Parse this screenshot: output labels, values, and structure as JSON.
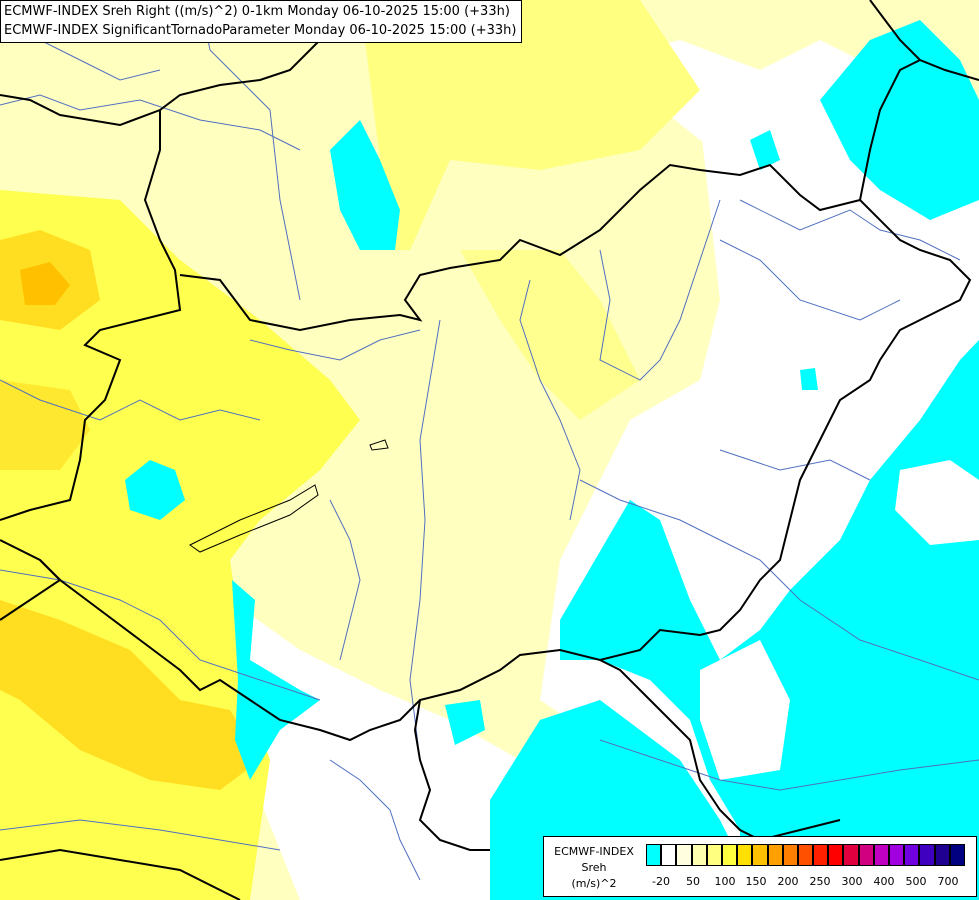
{
  "titles": {
    "line1": "ECMWF-INDEX Sreh Right ((m/s)^2) 0-1km Monday 06-10-2025 15:00 (+33h)",
    "line2": "ECMWF-INDEX SignificantTornadoParameter Monday 06-10-2025 15:00 (+33h)"
  },
  "legend": {
    "line1": "ECMWF-INDEX",
    "line2": "Sreh",
    "line3": "(m/s)^2",
    "ticks": [
      "-20",
      "50",
      "100",
      "150",
      "200",
      "250",
      "300",
      "400",
      "500",
      "700"
    ],
    "colors": [
      "#00ffff",
      "#ffffff",
      "#ffffe0",
      "#ffffb0",
      "#ffff80",
      "#ffff40",
      "#ffe000",
      "#ffc000",
      "#ffa000",
      "#ff8000",
      "#ff5000",
      "#ff2000",
      "#ff0000",
      "#e00040",
      "#d00080",
      "#c000c0",
      "#a000e0",
      "#7000e0",
      "#4000c0",
      "#200090",
      "#000080"
    ]
  },
  "colors": {
    "pale_yellow": "#ffffc0",
    "yellow": "#ffff80",
    "bright_yellow": "#ffff30",
    "orange_yellow": "#ffd700",
    "cyan": "#00ffff",
    "white": "#ffffff"
  }
}
